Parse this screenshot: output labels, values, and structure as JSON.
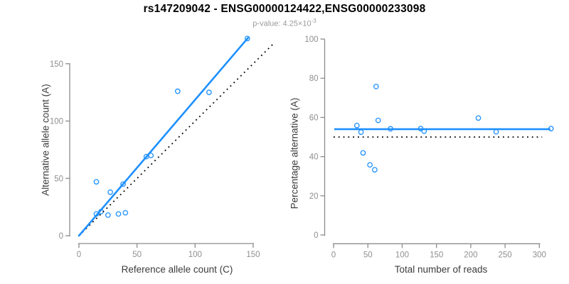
{
  "header": {
    "title": "rs147209042 - ENSG00000124422,ENSG00000233098",
    "subtitle_prefix": "p-value: 4.25×10",
    "subtitle_exponent": "-3"
  },
  "colors": {
    "accent": "#1E90FF",
    "point": "#1E90FF",
    "identity_line": "#000000",
    "axis_line": "#8c8c8c",
    "tick_label": "#8f8f8f",
    "axis_title": "#3c3c3c",
    "title": "#000000",
    "subtitle": "#9a9a9a",
    "background": "#ffffff"
  },
  "chart_data": [
    {
      "type": "scatter",
      "panel": "left",
      "title": "rs147209042 - ENSG00000124422,ENSG00000233098",
      "xlabel": "Reference allele count (C)",
      "ylabel": "Alternative allele count (A)",
      "xticks": [
        0,
        50,
        100,
        150
      ],
      "yticks": [
        0,
        50,
        100,
        150
      ],
      "xlim": [
        0,
        170
      ],
      "ylim": [
        0,
        175
      ],
      "grid": false,
      "legend": "none",
      "points": [
        [
          15,
          19
        ],
        [
          19,
          21
        ],
        [
          25,
          18
        ],
        [
          34,
          19
        ],
        [
          40,
          20
        ],
        [
          15,
          47
        ],
        [
          27,
          38
        ],
        [
          38,
          45
        ],
        [
          58,
          69
        ],
        [
          62,
          70
        ],
        [
          85,
          126
        ],
        [
          112,
          125
        ],
        [
          145,
          172
        ]
      ],
      "regression_line": {
        "x": [
          0,
          145.5
        ],
        "y": [
          0,
          172.5
        ],
        "style": "solid"
      },
      "identity_line": {
        "x": [
          0,
          168.5
        ],
        "y": [
          0,
          168.5
        ],
        "style": "dotted"
      }
    },
    {
      "type": "scatter",
      "panel": "right",
      "xlabel": "Total number of reads",
      "ylabel": "Percentage alternative (A)",
      "xticks": [
        0,
        50,
        100,
        150,
        200,
        250,
        300
      ],
      "yticks": [
        0,
        20,
        40,
        60,
        80,
        100
      ],
      "xlim": [
        0,
        317
      ],
      "ylim": [
        0,
        100
      ],
      "grid": false,
      "legend": "none",
      "points": [
        [
          34,
          55.9
        ],
        [
          40,
          52.5
        ],
        [
          43,
          41.9
        ],
        [
          53,
          35.8
        ],
        [
          60,
          33.3
        ],
        [
          62,
          75.8
        ],
        [
          65,
          58.5
        ],
        [
          83,
          54.2
        ],
        [
          127,
          54.3
        ],
        [
          132,
          53.0
        ],
        [
          211,
          59.7
        ],
        [
          237,
          52.7
        ],
        [
          317,
          54.3
        ]
      ],
      "mean_line": {
        "y": 54,
        "x": [
          1,
          316
        ],
        "style": "solid"
      },
      "null_line": {
        "y": 50,
        "x": [
          0,
          304
        ],
        "style": "dotted"
      }
    }
  ]
}
